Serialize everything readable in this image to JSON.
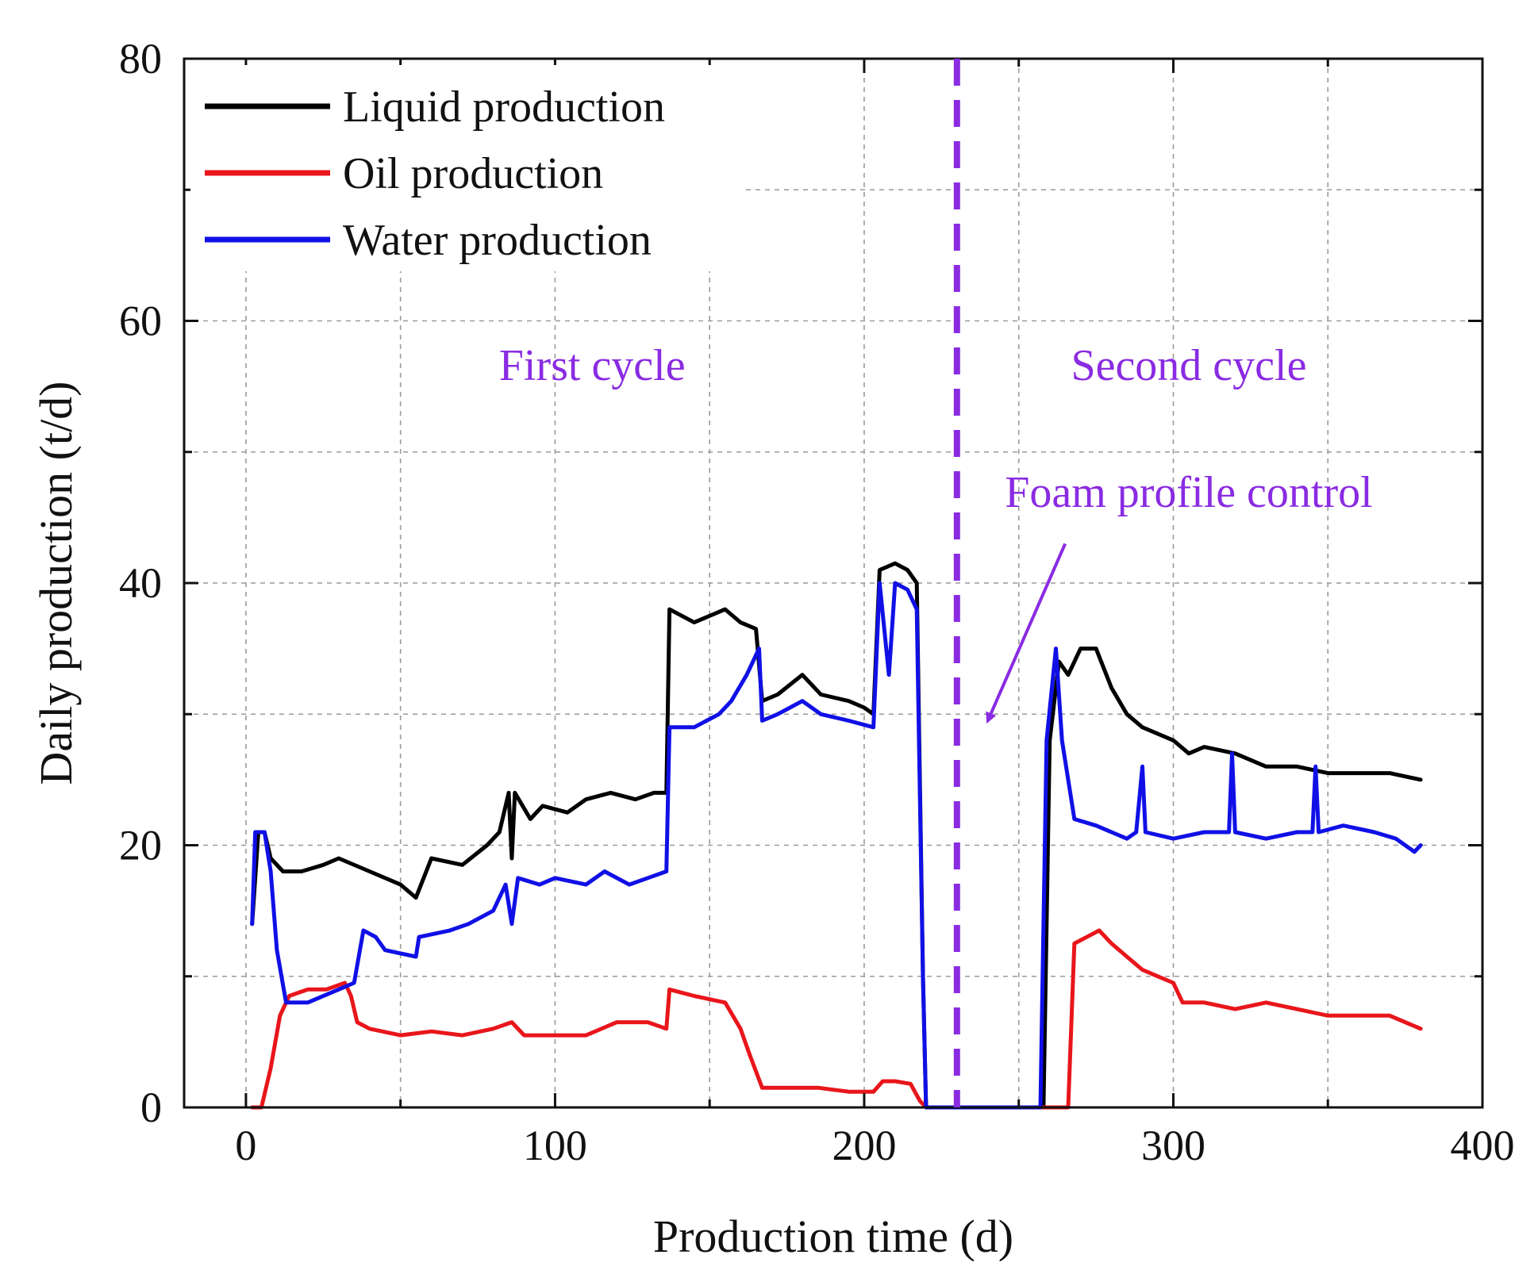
{
  "chart_data": {
    "type": "line",
    "xlabel": "Production time (d)",
    "ylabel": "Daily production (t/d)",
    "xlim": [
      -20,
      400
    ],
    "ylim": [
      0,
      80
    ],
    "x_ticks": [
      0,
      100,
      200,
      300,
      400
    ],
    "y_ticks": [
      0,
      20,
      40,
      60,
      80
    ],
    "grid": true,
    "legend_position": "top-left",
    "colors": {
      "liquid": "#000000",
      "oil": "#e8161b",
      "water": "#1010e6",
      "annotation": "#8a2be2"
    },
    "series": [
      {
        "name": "Liquid production",
        "color": "#000000",
        "points": [
          [
            2,
            14
          ],
          [
            4,
            21
          ],
          [
            6,
            21
          ],
          [
            8,
            19
          ],
          [
            12,
            18
          ],
          [
            18,
            18
          ],
          [
            25,
            18.5
          ],
          [
            30,
            19
          ],
          [
            40,
            18
          ],
          [
            50,
            17
          ],
          [
            55,
            16
          ],
          [
            60,
            19
          ],
          [
            70,
            18.5
          ],
          [
            78,
            20
          ],
          [
            82,
            21
          ],
          [
            85,
            24
          ],
          [
            86,
            19
          ],
          [
            87,
            24
          ],
          [
            92,
            22
          ],
          [
            96,
            23
          ],
          [
            104,
            22.5
          ],
          [
            110,
            23.5
          ],
          [
            118,
            24
          ],
          [
            126,
            23.5
          ],
          [
            132,
            24
          ],
          [
            136,
            24
          ],
          [
            137,
            38
          ],
          [
            145,
            37
          ],
          [
            155,
            38
          ],
          [
            160,
            37
          ],
          [
            165,
            36.5
          ],
          [
            167,
            31
          ],
          [
            172,
            31.5
          ],
          [
            180,
            33
          ],
          [
            186,
            31.5
          ],
          [
            195,
            31
          ],
          [
            200,
            30.5
          ],
          [
            203,
            30
          ],
          [
            205,
            41
          ],
          [
            210,
            41.5
          ],
          [
            214,
            41
          ],
          [
            217,
            40
          ],
          [
            219,
            10
          ],
          [
            220,
            0
          ],
          [
            258,
            0
          ],
          [
            260,
            28
          ],
          [
            263,
            34
          ],
          [
            266,
            33
          ],
          [
            270,
            35
          ],
          [
            275,
            35
          ],
          [
            280,
            32
          ],
          [
            285,
            30
          ],
          [
            290,
            29
          ],
          [
            300,
            28
          ],
          [
            305,
            27
          ],
          [
            310,
            27.5
          ],
          [
            320,
            27
          ],
          [
            330,
            26
          ],
          [
            340,
            26
          ],
          [
            350,
            25.5
          ],
          [
            360,
            25.5
          ],
          [
            370,
            25.5
          ],
          [
            380,
            25
          ]
        ]
      },
      {
        "name": "Oil production",
        "color": "#e8161b",
        "points": [
          [
            2,
            0
          ],
          [
            5,
            0
          ],
          [
            8,
            3
          ],
          [
            11,
            7
          ],
          [
            14,
            8.5
          ],
          [
            20,
            9
          ],
          [
            26,
            9
          ],
          [
            32,
            9.5
          ],
          [
            34,
            8.5
          ],
          [
            36,
            6.5
          ],
          [
            40,
            6
          ],
          [
            50,
            5.5
          ],
          [
            60,
            5.8
          ],
          [
            70,
            5.5
          ],
          [
            80,
            6
          ],
          [
            86,
            6.5
          ],
          [
            90,
            5.5
          ],
          [
            100,
            5.5
          ],
          [
            110,
            5.5
          ],
          [
            120,
            6.5
          ],
          [
            130,
            6.5
          ],
          [
            136,
            6
          ],
          [
            137,
            9
          ],
          [
            145,
            8.5
          ],
          [
            155,
            8
          ],
          [
            160,
            6
          ],
          [
            163,
            4
          ],
          [
            167,
            1.5
          ],
          [
            175,
            1.5
          ],
          [
            185,
            1.5
          ],
          [
            195,
            1.2
          ],
          [
            200,
            1.2
          ],
          [
            203,
            1.2
          ],
          [
            206,
            2
          ],
          [
            210,
            2
          ],
          [
            215,
            1.8
          ],
          [
            218,
            0.5
          ],
          [
            220,
            0
          ],
          [
            263,
            0
          ],
          [
            266,
            0
          ],
          [
            268,
            12.5
          ],
          [
            272,
            13
          ],
          [
            276,
            13.5
          ],
          [
            280,
            12.5
          ],
          [
            285,
            11.5
          ],
          [
            290,
            10.5
          ],
          [
            295,
            10
          ],
          [
            300,
            9.5
          ],
          [
            303,
            8
          ],
          [
            310,
            8
          ],
          [
            320,
            7.5
          ],
          [
            330,
            8
          ],
          [
            340,
            7.5
          ],
          [
            350,
            7
          ],
          [
            360,
            7
          ],
          [
            370,
            7
          ],
          [
            380,
            6
          ]
        ]
      },
      {
        "name": "Water production",
        "color": "#1010e6",
        "points": [
          [
            2,
            14
          ],
          [
            3,
            21
          ],
          [
            6,
            21
          ],
          [
            8,
            18
          ],
          [
            10,
            12
          ],
          [
            13,
            8
          ],
          [
            20,
            8
          ],
          [
            30,
            9
          ],
          [
            35,
            9.5
          ],
          [
            38,
            13.5
          ],
          [
            42,
            13
          ],
          [
            45,
            12
          ],
          [
            55,
            11.5
          ],
          [
            56,
            13
          ],
          [
            66,
            13.5
          ],
          [
            72,
            14
          ],
          [
            80,
            15
          ],
          [
            84,
            17
          ],
          [
            86,
            14
          ],
          [
            88,
            17.5
          ],
          [
            95,
            17
          ],
          [
            100,
            17.5
          ],
          [
            110,
            17
          ],
          [
            116,
            18
          ],
          [
            124,
            17
          ],
          [
            130,
            17.5
          ],
          [
            136,
            18
          ],
          [
            137,
            29
          ],
          [
            145,
            29
          ],
          [
            153,
            30
          ],
          [
            157,
            31
          ],
          [
            162,
            33
          ],
          [
            166,
            35
          ],
          [
            167,
            29.5
          ],
          [
            172,
            30
          ],
          [
            180,
            31
          ],
          [
            186,
            30
          ],
          [
            195,
            29.5
          ],
          [
            203,
            29
          ],
          [
            205,
            40
          ],
          [
            208,
            33
          ],
          [
            210,
            40
          ],
          [
            214,
            39.5
          ],
          [
            217,
            38
          ],
          [
            219,
            10
          ],
          [
            220,
            0
          ],
          [
            257,
            0
          ],
          [
            259,
            28
          ],
          [
            262,
            35
          ],
          [
            264,
            28
          ],
          [
            268,
            22
          ],
          [
            275,
            21.5
          ],
          [
            280,
            21
          ],
          [
            285,
            20.5
          ],
          [
            288,
            21
          ],
          [
            290,
            26
          ],
          [
            291,
            21
          ],
          [
            300,
            20.5
          ],
          [
            310,
            21
          ],
          [
            318,
            21
          ],
          [
            319,
            27
          ],
          [
            320,
            21
          ],
          [
            330,
            20.5
          ],
          [
            340,
            21
          ],
          [
            345,
            21
          ],
          [
            346,
            26
          ],
          [
            347,
            21
          ],
          [
            355,
            21.5
          ],
          [
            365,
            21
          ],
          [
            372,
            20.5
          ],
          [
            378,
            19.5
          ],
          [
            380,
            20
          ]
        ]
      }
    ],
    "annotations": {
      "first_cycle": "First cycle",
      "second_cycle": "Second cycle",
      "foam": "Foam profile control"
    },
    "divider_x": 230,
    "arrow": {
      "from": [
        265,
        43
      ],
      "to": [
        240,
        29.5
      ]
    }
  }
}
